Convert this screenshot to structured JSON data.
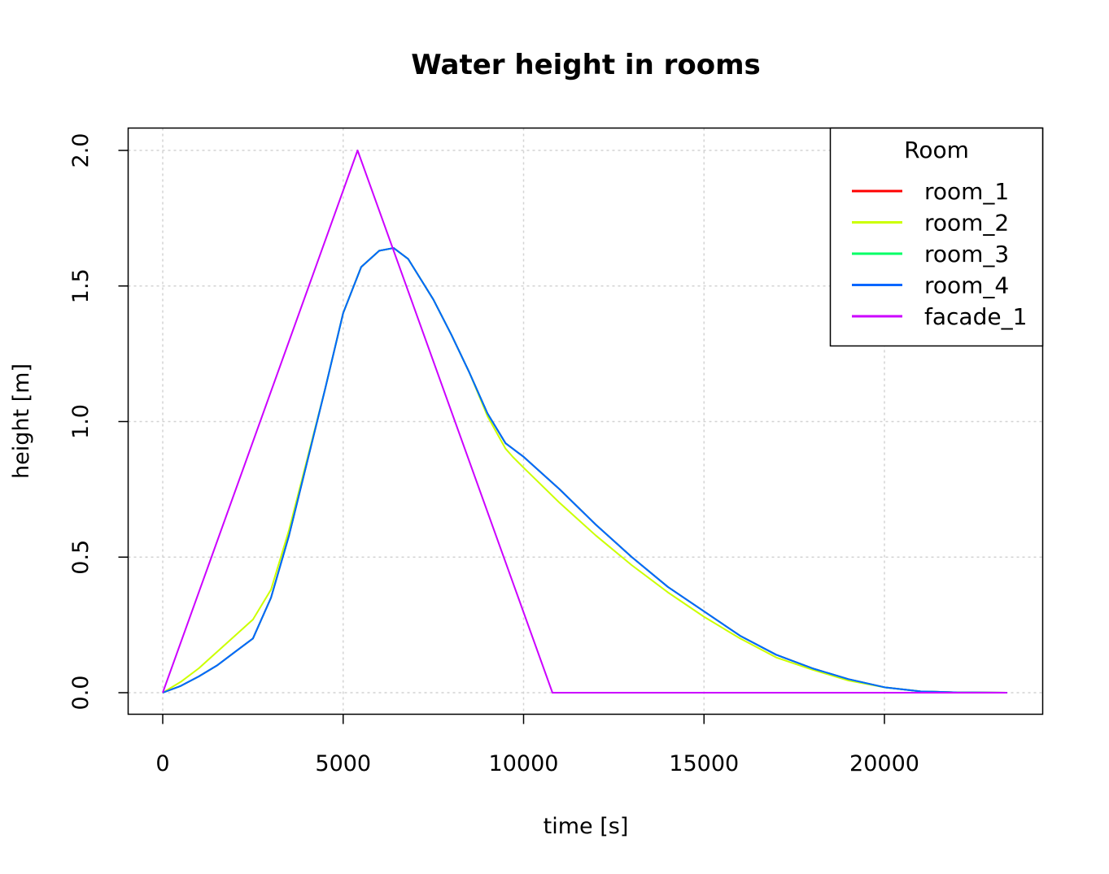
{
  "chart_data": {
    "type": "line",
    "title": "Water height in rooms",
    "xlabel": "time [s]",
    "ylabel": "height [m]",
    "xlim": [
      0,
      23500
    ],
    "ylim": [
      0,
      2.0
    ],
    "x_ticks": [
      0,
      5000,
      10000,
      15000,
      20000
    ],
    "x_tick_labels": [
      "0",
      "5000",
      "10000",
      "15000",
      "20000"
    ],
    "y_ticks": [
      0.0,
      0.5,
      1.0,
      1.5,
      2.0
    ],
    "y_tick_labels": [
      "0.0",
      "0.5",
      "1.0",
      "1.5",
      "2.0"
    ],
    "grid": true,
    "legend": {
      "title": "Room",
      "position": "top-right",
      "entries": [
        "room_1",
        "room_2",
        "room_3",
        "room_4",
        "facade_1"
      ]
    },
    "series": [
      {
        "name": "room_1",
        "color": "#FF0000",
        "x": [
          0,
          500,
          1000,
          1500,
          2000,
          2500,
          3000,
          3500,
          4000,
          4500,
          5000,
          5500,
          6000,
          6400,
          6800,
          7500,
          8000,
          8500,
          9000,
          9500,
          9700,
          10000,
          11000,
          12000,
          13000,
          14000,
          15000,
          16000,
          17000,
          18000,
          19000,
          20000,
          21000,
          22000,
          23400
        ],
        "y": [
          0,
          0.025,
          0.06,
          0.1,
          0.15,
          0.2,
          0.35,
          0.58,
          0.85,
          1.12,
          1.4,
          1.57,
          1.63,
          1.64,
          1.6,
          1.45,
          1.32,
          1.18,
          1.03,
          0.92,
          0.9,
          0.87,
          0.75,
          0.62,
          0.5,
          0.39,
          0.3,
          0.21,
          0.14,
          0.09,
          0.05,
          0.02,
          0.005,
          0.001,
          0
        ]
      },
      {
        "name": "room_2",
        "color": "#CCFF00",
        "x": [
          0,
          500,
          1000,
          1500,
          2000,
          2500,
          3000,
          3500,
          4000,
          4500,
          5000,
          5500,
          6000,
          6400,
          6800,
          7500,
          8000,
          8500,
          9000,
          9500,
          9700,
          10000,
          11000,
          12000,
          13000,
          14000,
          15000,
          16000,
          17000,
          18000,
          19000,
          20000,
          21000,
          22000,
          23400
        ],
        "y": [
          0,
          0.04,
          0.09,
          0.15,
          0.21,
          0.27,
          0.38,
          0.6,
          0.86,
          1.12,
          1.4,
          1.57,
          1.63,
          1.64,
          1.6,
          1.45,
          1.32,
          1.18,
          1.02,
          0.9,
          0.87,
          0.83,
          0.7,
          0.58,
          0.47,
          0.37,
          0.28,
          0.2,
          0.13,
          0.085,
          0.045,
          0.02,
          0.005,
          0.001,
          0
        ]
      },
      {
        "name": "room_3",
        "color": "#00FF66",
        "x": [
          0,
          500,
          1000,
          1500,
          2000,
          2500,
          3000,
          3500,
          4000,
          4500,
          5000,
          5500,
          6000,
          6400,
          6800,
          7500,
          8000,
          8500,
          9000,
          9500,
          9700,
          10000,
          11000,
          12000,
          13000,
          14000,
          15000,
          16000,
          17000,
          18000,
          19000,
          20000,
          21000,
          22000,
          23400
        ],
        "y": [
          0,
          0.025,
          0.06,
          0.1,
          0.15,
          0.2,
          0.35,
          0.58,
          0.85,
          1.12,
          1.4,
          1.57,
          1.63,
          1.64,
          1.6,
          1.45,
          1.32,
          1.18,
          1.03,
          0.92,
          0.9,
          0.87,
          0.75,
          0.62,
          0.5,
          0.39,
          0.3,
          0.21,
          0.14,
          0.09,
          0.05,
          0.02,
          0.005,
          0.001,
          0
        ]
      },
      {
        "name": "room_4",
        "color": "#0066FF",
        "x": [
          0,
          500,
          1000,
          1500,
          2000,
          2500,
          3000,
          3500,
          4000,
          4500,
          5000,
          5500,
          6000,
          6400,
          6800,
          7500,
          8000,
          8500,
          9000,
          9500,
          9700,
          10000,
          11000,
          12000,
          13000,
          14000,
          15000,
          16000,
          17000,
          18000,
          19000,
          20000,
          21000,
          22000,
          23400
        ],
        "y": [
          0,
          0.025,
          0.06,
          0.1,
          0.15,
          0.2,
          0.35,
          0.58,
          0.85,
          1.12,
          1.4,
          1.57,
          1.63,
          1.64,
          1.6,
          1.45,
          1.32,
          1.18,
          1.03,
          0.92,
          0.9,
          0.87,
          0.75,
          0.62,
          0.5,
          0.39,
          0.3,
          0.21,
          0.14,
          0.09,
          0.05,
          0.02,
          0.005,
          0.001,
          0
        ]
      },
      {
        "name": "facade_1",
        "color": "#CC00FF",
        "x": [
          0,
          5400,
          10800,
          23400
        ],
        "y": [
          0,
          2.0,
          0,
          0
        ]
      }
    ]
  }
}
